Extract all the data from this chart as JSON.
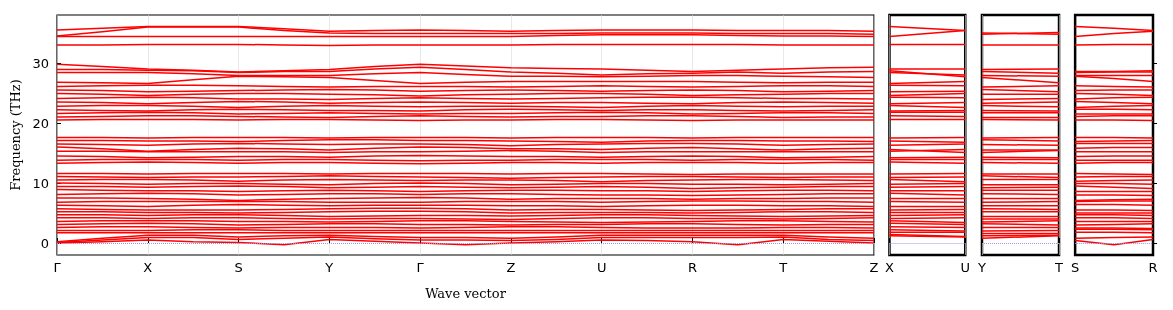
{
  "chart_data": [
    {
      "type": "line",
      "ylabel": "Frequency (THz)",
      "xlabel": "Wave vector",
      "ylim": [
        -2,
        38
      ],
      "yticks": [
        0,
        10,
        20,
        30
      ],
      "grid": "x",
      "marker": "none",
      "line_style": "solid",
      "categories": [
        "Γ",
        null,
        "X",
        null,
        "S",
        null,
        "Y",
        null,
        "Γ",
        null,
        "Z",
        null,
        "U",
        null,
        "R",
        null,
        "T",
        null,
        "Z"
      ],
      "ref_lines": [
        {
          "axis": "y",
          "value": 0,
          "label": null,
          "color": "#9a9ae0",
          "line_style": "dotted"
        }
      ],
      "series": [
        {
          "color": "#ff0000",
          "values": [
            35.5,
            35.8,
            36.1,
            36.1,
            36.1,
            35.7,
            35.3,
            35.4,
            35.5,
            35.4,
            35.3,
            35.4,
            35.5,
            35.5,
            35.5,
            35.4,
            35.4,
            35.4,
            35.3
          ]
        },
        {
          "color": "#ff0000",
          "values": [
            34.5,
            35.2,
            36.0,
            36.0,
            36.0,
            35.4,
            35.0,
            34.9,
            34.9,
            34.9,
            34.9,
            34.9,
            35.0,
            35.0,
            35.0,
            34.9,
            34.9,
            34.9,
            34.8
          ]
        },
        {
          "color": "#ff0000",
          "values": [
            34.4,
            34.4,
            34.4,
            34.4,
            34.4,
            34.4,
            34.4,
            34.4,
            34.4,
            34.4,
            34.4,
            34.6,
            34.7,
            34.7,
            34.7,
            34.6,
            34.5,
            34.5,
            34.4
          ]
        },
        {
          "color": "#ff0000",
          "values": [
            33.0,
            33.0,
            33.1,
            33.1,
            33.1,
            33.0,
            32.9,
            33.0,
            33.0,
            33.0,
            33.0,
            33.1,
            33.1,
            33.1,
            33.1,
            33.1,
            33.0,
            33.0,
            33.0
          ]
        },
        {
          "color": "#ff0000",
          "values": [
            29.8,
            29.4,
            29.0,
            28.8,
            28.5,
            28.7,
            28.9,
            29.4,
            29.8,
            29.5,
            29.2,
            29.1,
            29.0,
            28.8,
            28.6,
            28.8,
            29.0,
            29.2,
            29.3
          ]
        },
        {
          "color": "#ff0000",
          "values": [
            28.9,
            28.9,
            28.8,
            28.7,
            28.4,
            28.6,
            28.6,
            29.0,
            29.3,
            28.9,
            28.5,
            28.3,
            28.0,
            28.2,
            28.3,
            28.5,
            28.3,
            28.5,
            28.6
          ]
        },
        {
          "color": "#ff0000",
          "values": [
            28.4,
            28.4,
            28.4,
            28.2,
            27.9,
            27.9,
            27.9,
            28.2,
            28.4,
            28.1,
            27.8,
            27.8,
            27.7,
            27.8,
            27.9,
            27.9,
            27.8,
            27.7,
            27.6
          ]
        },
        {
          "color": "#ff0000",
          "values": [
            26.8,
            26.7,
            26.6,
            27.2,
            27.8,
            27.7,
            27.6,
            27.1,
            26.6,
            26.8,
            26.9,
            26.9,
            26.9,
            26.9,
            26.9,
            26.8,
            26.7,
            26.8,
            26.8
          ]
        },
        {
          "color": "#ff0000",
          "values": [
            26.1,
            26.2,
            26.3,
            26.3,
            26.2,
            26.1,
            26.0,
            26.1,
            26.1,
            26.1,
            26.0,
            26.1,
            26.2,
            26.1,
            26.0,
            26.1,
            26.2,
            26.2,
            26.1
          ]
        },
        {
          "color": "#ff0000",
          "values": [
            25.5,
            25.4,
            25.2,
            25.3,
            25.4,
            25.5,
            25.6,
            25.5,
            25.3,
            25.4,
            25.5,
            25.4,
            25.3,
            25.4,
            25.5,
            25.4,
            25.2,
            25.3,
            25.4
          ]
        },
        {
          "color": "#ff0000",
          "values": [
            24.9,
            24.8,
            24.6,
            24.8,
            24.9,
            24.9,
            24.8,
            24.7,
            24.5,
            24.7,
            24.8,
            24.9,
            24.9,
            24.8,
            24.6,
            24.7,
            24.8,
            24.9,
            24.9
          ]
        },
        {
          "color": "#ff0000",
          "values": [
            24.1,
            24.2,
            24.3,
            24.2,
            24.0,
            24.0,
            23.9,
            24.1,
            24.2,
            24.1,
            24.0,
            24.1,
            24.2,
            24.3,
            24.3,
            24.2,
            24.1,
            24.1,
            24.0
          ]
        },
        {
          "color": "#ff0000",
          "values": [
            23.5,
            23.4,
            23.2,
            23.4,
            23.6,
            23.5,
            23.3,
            23.4,
            23.5,
            23.4,
            23.3,
            23.4,
            23.4,
            23.3,
            23.2,
            23.4,
            23.5,
            23.4,
            23.3
          ]
        },
        {
          "color": "#ff0000",
          "values": [
            22.8,
            22.9,
            22.9,
            22.8,
            22.6,
            22.8,
            22.9,
            22.8,
            22.7,
            22.8,
            22.8,
            22.7,
            22.6,
            22.8,
            22.9,
            22.8,
            22.7,
            22.8,
            22.8
          ]
        },
        {
          "color": "#ff0000",
          "values": [
            22.2,
            22.1,
            22.0,
            22.2,
            22.3,
            22.2,
            22.1,
            22.1,
            22.0,
            22.2,
            22.3,
            22.2,
            22.1,
            22.2,
            22.2,
            22.1,
            22.0,
            22.1,
            22.2
          ]
        },
        {
          "color": "#ff0000",
          "values": [
            21.6,
            21.7,
            21.8,
            21.7,
            21.5,
            21.6,
            21.7,
            21.6,
            21.5,
            21.6,
            21.6,
            21.7,
            21.8,
            21.7,
            21.5,
            21.6,
            21.7,
            21.7,
            21.6
          ]
        },
        {
          "color": "#ff0000",
          "values": [
            21.0,
            21.1,
            21.2,
            21.2,
            21.1,
            21.0,
            20.9,
            21.1,
            21.2,
            21.1,
            21.0,
            21.1,
            21.1,
            21.2,
            21.2,
            21.1,
            20.9,
            21.0,
            21.0
          ]
        },
        {
          "color": "#ff0000",
          "values": [
            20.5,
            20.6,
            20.6,
            20.6,
            20.5,
            20.6,
            20.6,
            20.5,
            20.4,
            20.5,
            20.5,
            20.6,
            20.6,
            20.5,
            20.4,
            20.5,
            20.5,
            20.5,
            20.5
          ]
        },
        {
          "color": "#ff0000",
          "values": [
            17.6,
            17.6,
            17.5,
            17.6,
            17.6,
            17.6,
            17.5,
            17.6,
            17.6,
            17.6,
            17.5,
            17.6,
            17.6,
            17.6,
            17.5,
            17.6,
            17.6,
            17.6,
            17.6
          ]
        },
        {
          "color": "#ff0000",
          "values": [
            17.1,
            17.1,
            17.0,
            17.0,
            16.9,
            17.1,
            17.2,
            17.2,
            17.1,
            17.1,
            17.0,
            16.9,
            16.8,
            17.0,
            17.1,
            17.1,
            17.0,
            17.0,
            16.9
          ]
        },
        {
          "color": "#ff0000",
          "values": [
            16.5,
            16.4,
            16.3,
            16.5,
            16.6,
            16.5,
            16.4,
            16.5,
            16.5,
            16.4,
            16.2,
            16.4,
            16.5,
            16.6,
            16.6,
            16.5,
            16.3,
            16.4,
            16.5
          ]
        },
        {
          "color": "#ff0000",
          "values": [
            16.0,
            15.7,
            15.3,
            15.6,
            15.8,
            15.7,
            15.5,
            15.8,
            16.0,
            15.9,
            15.7,
            15.7,
            15.6,
            15.8,
            15.9,
            15.7,
            15.5,
            15.7,
            15.8
          ]
        },
        {
          "color": "#ff0000",
          "values": [
            15.3,
            15.3,
            15.2,
            15.2,
            15.2,
            15.2,
            15.1,
            15.2,
            15.2,
            15.3,
            15.4,
            15.3,
            15.1,
            15.2,
            15.2,
            15.2,
            15.2,
            15.2,
            15.2
          ]
        },
        {
          "color": "#ff0000",
          "values": [
            14.5,
            14.4,
            14.2,
            14.3,
            14.4,
            14.4,
            14.3,
            14.5,
            14.6,
            14.5,
            14.4,
            14.4,
            14.3,
            14.4,
            14.5,
            14.4,
            14.2,
            14.3,
            14.4
          ]
        },
        {
          "color": "#ff0000",
          "values": [
            13.8,
            13.9,
            13.9,
            13.9,
            13.8,
            13.9,
            13.9,
            13.8,
            13.7,
            13.8,
            13.8,
            13.9,
            13.9,
            13.9,
            13.8,
            13.9,
            13.9,
            13.9,
            13.8
          ]
        },
        {
          "color": "#ff0000",
          "values": [
            13.3,
            13.4,
            13.5,
            13.4,
            13.3,
            13.4,
            13.4,
            13.3,
            13.2,
            13.3,
            13.4,
            13.4,
            13.3,
            13.4,
            13.4,
            13.4,
            13.3,
            13.4,
            13.4
          ]
        },
        {
          "color": "#ff0000",
          "values": [
            11.6,
            11.6,
            11.5,
            11.6,
            11.6,
            11.6,
            11.5,
            11.6,
            11.6,
            11.6,
            11.5,
            11.6,
            11.6,
            11.5,
            11.4,
            11.5,
            11.5,
            11.5,
            11.5
          ]
        },
        {
          "color": "#ff0000",
          "values": [
            11.1,
            11.0,
            10.9,
            11.0,
            11.0,
            11.1,
            11.2,
            11.1,
            11.0,
            10.9,
            10.8,
            10.9,
            11.0,
            11.1,
            11.1,
            11.0,
            10.9,
            11.0,
            11.0
          ]
        },
        {
          "color": "#ff0000",
          "values": [
            10.5,
            10.6,
            10.6,
            10.5,
            10.3,
            10.5,
            10.6,
            10.5,
            10.4,
            10.5,
            10.5,
            10.4,
            10.2,
            10.4,
            10.5,
            10.6,
            10.6,
            10.5,
            10.4
          ]
        },
        {
          "color": "#ff0000",
          "values": [
            10.0,
            9.9,
            9.8,
            9.9,
            9.9,
            9.8,
            9.7,
            9.9,
            10.0,
            9.9,
            9.7,
            9.8,
            9.9,
            9.9,
            9.8,
            9.8,
            9.7,
            9.8,
            9.9
          ]
        },
        {
          "color": "#ff0000",
          "values": [
            9.4,
            9.4,
            9.3,
            9.4,
            9.5,
            9.4,
            9.2,
            9.3,
            9.4,
            9.3,
            9.2,
            9.3,
            9.4,
            9.3,
            9.1,
            9.2,
            9.3,
            9.4,
            9.4
          ]
        },
        {
          "color": "#ff0000",
          "values": [
            8.9,
            8.8,
            8.7,
            8.7,
            8.6,
            8.7,
            8.8,
            8.7,
            8.6,
            8.7,
            8.8,
            8.8,
            8.7,
            8.7,
            8.6,
            8.7,
            8.8,
            8.8,
            8.7
          ]
        },
        {
          "color": "#ff0000",
          "values": [
            8.1,
            8.2,
            8.3,
            8.2,
            8.0,
            8.1,
            8.2,
            8.2,
            8.1,
            8.2,
            8.2,
            8.1,
            8.0,
            8.0,
            7.9,
            8.0,
            8.1,
            8.2,
            8.2
          ]
        },
        {
          "color": "#ff0000",
          "values": [
            7.5,
            7.5,
            7.4,
            7.3,
            7.1,
            7.3,
            7.4,
            7.5,
            7.6,
            7.5,
            7.3,
            7.4,
            7.4,
            7.4,
            7.3,
            7.4,
            7.4,
            7.5,
            7.5
          ]
        },
        {
          "color": "#ff0000",
          "values": [
            6.8,
            6.9,
            6.9,
            6.9,
            6.9,
            6.9,
            6.8,
            6.8,
            6.8,
            6.9,
            6.9,
            6.9,
            6.8,
            6.9,
            7.0,
            7.0,
            6.9,
            6.9,
            6.8
          ]
        },
        {
          "color": "#ff0000",
          "values": [
            6.3,
            6.2,
            6.1,
            6.3,
            6.4,
            6.3,
            6.2,
            6.3,
            6.3,
            6.3,
            6.2,
            6.2,
            6.1,
            6.2,
            6.3,
            6.3,
            6.2,
            6.2,
            6.1
          ]
        },
        {
          "color": "#ff0000",
          "values": [
            5.7,
            5.6,
            5.5,
            5.5,
            5.5,
            5.6,
            5.7,
            5.8,
            5.8,
            5.7,
            5.5,
            5.6,
            5.6,
            5.5,
            5.4,
            5.5,
            5.6,
            5.7,
            5.7
          ]
        },
        {
          "color": "#ff0000",
          "values": [
            5.2,
            5.2,
            5.1,
            5.1,
            5.0,
            5.1,
            5.2,
            5.3,
            5.3,
            5.2,
            5.0,
            5.1,
            5.1,
            5.1,
            5.0,
            5.1,
            5.2,
            5.2,
            5.1
          ]
        },
        {
          "color": "#ff0000",
          "values": [
            4.7,
            4.7,
            4.6,
            4.7,
            4.7,
            4.6,
            4.4,
            4.5,
            4.6,
            4.6,
            4.5,
            4.6,
            4.7,
            4.7,
            4.6,
            4.5,
            4.4,
            4.5,
            4.6
          ]
        },
        {
          "color": "#ff0000",
          "values": [
            4.2,
            4.2,
            4.1,
            4.2,
            4.2,
            4.1,
            4.0,
            4.1,
            4.1,
            4.0,
            3.9,
            4.1,
            4.2,
            4.2,
            4.1,
            4.1,
            4.0,
            4.1,
            4.2
          ]
        },
        {
          "color": "#ff0000",
          "values": [
            3.6,
            3.7,
            3.7,
            3.7,
            3.6,
            3.6,
            3.5,
            3.6,
            3.7,
            3.7,
            3.6,
            3.5,
            3.4,
            3.5,
            3.6,
            3.7,
            3.7,
            3.6,
            3.5
          ]
        },
        {
          "color": "#ff0000",
          "values": [
            3.1,
            3.2,
            3.3,
            3.2,
            3.0,
            3.1,
            3.2,
            3.2,
            3.1,
            3.1,
            3.0,
            3.1,
            3.1,
            3.2,
            3.2,
            3.1,
            3.0,
            3.1,
            3.1
          ]
        },
        {
          "color": "#ff0000",
          "values": [
            2.6,
            2.7,
            2.7,
            2.6,
            2.5,
            2.6,
            2.6,
            2.6,
            2.5,
            2.6,
            2.7,
            2.7,
            2.6,
            2.5,
            2.5,
            2.5,
            2.6,
            2.6,
            2.5
          ]
        },
        {
          "color": "#ff0000",
          "values": [
            2.1,
            2.1,
            2.1,
            2.2,
            2.2,
            2.1,
            2.1,
            2.1,
            2.1,
            2.1,
            2.1,
            2.1,
            2.1,
            2.1,
            2.1,
            2.1,
            2.1,
            2.1,
            2.1
          ]
        },
        {
          "color": "#ff0000",
          "values": [
            1.7,
            1.7,
            1.7,
            1.7,
            1.7,
            1.7,
            1.7,
            1.7,
            1.7,
            1.7,
            1.7,
            1.7,
            1.7,
            1.7,
            1.7,
            1.7,
            1.7,
            1.7,
            1.7
          ]
        },
        {
          "color": "#ff0000",
          "values": [
            0.2,
            0.8,
            1.3,
            1.3,
            1.0,
            1.2,
            1.3,
            1.1,
            0.9,
            0.9,
            0.8,
            1.0,
            1.3,
            1.3,
            1.3,
            1.3,
            1.3,
            1.0,
            0.8
          ]
        },
        {
          "color": "#ff0000",
          "values": [
            0.1,
            0.5,
            0.9,
            0.9,
            0.6,
            0.8,
            1.0,
            0.7,
            0.5,
            0.5,
            0.4,
            0.6,
            0.9,
            0.9,
            0.9,
            0.9,
            1.0,
            0.6,
            0.4
          ]
        },
        {
          "color": "#ff0000",
          "values": [
            0,
            0.2,
            0.5,
            0.2,
            0.1,
            -0.3,
            0.6,
            0.3,
            0,
            -0.3,
            0,
            0.2,
            0.5,
            0.4,
            0.2,
            -0.3,
            0.6,
            0.3,
            0
          ]
        }
      ]
    },
    {
      "type": "line",
      "ylim": [
        -2,
        38
      ],
      "tick_labels": "x",
      "grid": "x",
      "marker": "none",
      "line_style": "solid",
      "categories": [
        "X",
        "U"
      ],
      "ref_lines": [
        {
          "axis": "y",
          "value": 0,
          "label": null,
          "color": "#9a9ae0",
          "line_style": "dotted"
        }
      ],
      "series": [
        {
          "color": "#ff0000",
          "values": [
            36.1,
            35.4
          ]
        },
        {
          "color": "#ff0000",
          "values": [
            34.4,
            35.4
          ]
        },
        {
          "color": "#ff0000",
          "values": [
            33.1,
            33.1
          ]
        },
        {
          "color": "#ff0000",
          "values": [
            29.0,
            29.0
          ]
        },
        {
          "color": "#ff0000",
          "values": [
            28.7,
            27.7
          ]
        },
        {
          "color": "#ff0000",
          "values": [
            28.4,
            28.0
          ]
        },
        {
          "color": "#ff0000",
          "values": [
            26.6,
            26.9
          ]
        },
        {
          "color": "#ff0000",
          "values": [
            26.3,
            26.2
          ]
        },
        {
          "color": "#ff0000",
          "values": [
            25.2,
            25.3
          ]
        },
        {
          "color": "#ff0000",
          "values": [
            24.6,
            24.9
          ]
        },
        {
          "color": "#ff0000",
          "values": [
            24.3,
            24.2
          ]
        },
        {
          "color": "#ff0000",
          "values": [
            23.2,
            23.4
          ]
        },
        {
          "color": "#ff0000",
          "values": [
            22.9,
            22.6
          ]
        },
        {
          "color": "#ff0000",
          "values": [
            22.0,
            22.1
          ]
        },
        {
          "color": "#ff0000",
          "values": [
            21.8,
            21.8
          ]
        },
        {
          "color": "#ff0000",
          "values": [
            21.2,
            21.1
          ]
        },
        {
          "color": "#ff0000",
          "values": [
            20.6,
            20.6
          ]
        },
        {
          "color": "#ff0000",
          "values": [
            17.5,
            17.6
          ]
        },
        {
          "color": "#ff0000",
          "values": [
            17.0,
            16.8
          ]
        },
        {
          "color": "#ff0000",
          "values": [
            16.3,
            16.5
          ]
        },
        {
          "color": "#ff0000",
          "values": [
            15.3,
            15.6
          ]
        },
        {
          "color": "#ff0000",
          "values": [
            15.6,
            15.1
          ]
        },
        {
          "color": "#ff0000",
          "values": [
            14.2,
            14.3
          ]
        },
        {
          "color": "#ff0000",
          "values": [
            13.9,
            13.9
          ]
        },
        {
          "color": "#ff0000",
          "values": [
            13.5,
            13.3
          ]
        },
        {
          "color": "#ff0000",
          "values": [
            11.5,
            11.6
          ]
        },
        {
          "color": "#ff0000",
          "values": [
            10.9,
            11.0
          ]
        },
        {
          "color": "#ff0000",
          "values": [
            10.6,
            10.2
          ]
        },
        {
          "color": "#ff0000",
          "values": [
            9.8,
            9.9
          ]
        },
        {
          "color": "#ff0000",
          "values": [
            9.3,
            9.4
          ]
        },
        {
          "color": "#ff0000",
          "values": [
            8.7,
            8.7
          ]
        },
        {
          "color": "#ff0000",
          "values": [
            8.3,
            8.0
          ]
        },
        {
          "color": "#ff0000",
          "values": [
            7.4,
            7.4
          ]
        },
        {
          "color": "#ff0000",
          "values": [
            6.9,
            6.8
          ]
        },
        {
          "color": "#ff0000",
          "values": [
            6.1,
            6.1
          ]
        },
        {
          "color": "#ff0000",
          "values": [
            5.5,
            5.6
          ]
        },
        {
          "color": "#ff0000",
          "values": [
            5.1,
            5.1
          ]
        },
        {
          "color": "#ff0000",
          "values": [
            4.6,
            4.7
          ]
        },
        {
          "color": "#ff0000",
          "values": [
            4.1,
            4.2
          ]
        },
        {
          "color": "#ff0000",
          "values": [
            3.7,
            3.4
          ]
        },
        {
          "color": "#ff0000",
          "values": [
            3.3,
            3.1
          ]
        },
        {
          "color": "#ff0000",
          "values": [
            2.7,
            2.6
          ]
        },
        {
          "color": "#ff0000",
          "values": [
            2.2,
            2.0
          ]
        },
        {
          "color": "#ff0000",
          "values": [
            1.8,
            1.8
          ]
        },
        {
          "color": "#ff0000",
          "values": [
            1.2,
            1.0
          ]
        },
        {
          "color": "#ff0000",
          "values": [
            1.4,
            1.1
          ]
        }
      ]
    },
    {
      "type": "line",
      "ylim": [
        -2,
        38
      ],
      "tick_labels": "x",
      "grid": "x",
      "marker": "none",
      "line_style": "solid",
      "categories": [
        "Y",
        "T"
      ],
      "ref_lines": [
        {
          "axis": "y",
          "value": 0,
          "label": null,
          "color": "#9a9ae0",
          "line_style": "dotted"
        }
      ],
      "series": [
        {
          "color": "#ff0000",
          "values": [
            35.0,
            34.8
          ]
        },
        {
          "color": "#ff0000",
          "values": [
            34.8,
            35.1
          ]
        },
        {
          "color": "#ff0000",
          "values": [
            33.0,
            33.0
          ]
        },
        {
          "color": "#ff0000",
          "values": [
            28.9,
            29.0
          ]
        },
        {
          "color": "#ff0000",
          "values": [
            28.6,
            28.3
          ]
        },
        {
          "color": "#ff0000",
          "values": [
            27.9,
            27.8
          ]
        },
        {
          "color": "#ff0000",
          "values": [
            27.6,
            26.7
          ]
        },
        {
          "color": "#ff0000",
          "values": [
            26.0,
            26.2
          ]
        },
        {
          "color": "#ff0000",
          "values": [
            25.6,
            25.2
          ]
        },
        {
          "color": "#ff0000",
          "values": [
            24.8,
            24.8
          ]
        },
        {
          "color": "#ff0000",
          "values": [
            23.9,
            24.1
          ]
        },
        {
          "color": "#ff0000",
          "values": [
            23.3,
            23.5
          ]
        },
        {
          "color": "#ff0000",
          "values": [
            22.9,
            22.7
          ]
        },
        {
          "color": "#ff0000",
          "values": [
            22.1,
            22.0
          ]
        },
        {
          "color": "#ff0000",
          "values": [
            21.7,
            21.7
          ]
        },
        {
          "color": "#ff0000",
          "values": [
            20.9,
            20.9
          ]
        },
        {
          "color": "#ff0000",
          "values": [
            20.6,
            20.5
          ]
        },
        {
          "color": "#ff0000",
          "values": [
            17.5,
            17.6
          ]
        },
        {
          "color": "#ff0000",
          "values": [
            17.2,
            17.0
          ]
        },
        {
          "color": "#ff0000",
          "values": [
            16.4,
            16.3
          ]
        },
        {
          "color": "#ff0000",
          "values": [
            15.5,
            15.5
          ]
        },
        {
          "color": "#ff0000",
          "values": [
            15.1,
            15.4
          ]
        },
        {
          "color": "#ff0000",
          "values": [
            14.3,
            14.2
          ]
        },
        {
          "color": "#ff0000",
          "values": [
            13.9,
            13.9
          ]
        },
        {
          "color": "#ff0000",
          "values": [
            13.4,
            13.3
          ]
        },
        {
          "color": "#ff0000",
          "values": [
            11.5,
            11.5
          ]
        },
        {
          "color": "#ff0000",
          "values": [
            11.2,
            10.9
          ]
        },
        {
          "color": "#ff0000",
          "values": [
            10.6,
            10.6
          ]
        },
        {
          "color": "#ff0000",
          "values": [
            9.7,
            9.7
          ]
        },
        {
          "color": "#ff0000",
          "values": [
            9.2,
            9.3
          ]
        },
        {
          "color": "#ff0000",
          "values": [
            8.8,
            8.8
          ]
        },
        {
          "color": "#ff0000",
          "values": [
            8.2,
            8.1
          ]
        },
        {
          "color": "#ff0000",
          "values": [
            7.4,
            7.4
          ]
        },
        {
          "color": "#ff0000",
          "values": [
            6.8,
            6.9
          ]
        },
        {
          "color": "#ff0000",
          "values": [
            6.2,
            6.2
          ]
        },
        {
          "color": "#ff0000",
          "values": [
            5.7,
            5.6
          ]
        },
        {
          "color": "#ff0000",
          "values": [
            5.2,
            5.2
          ]
        },
        {
          "color": "#ff0000",
          "values": [
            4.4,
            4.4
          ]
        },
        {
          "color": "#ff0000",
          "values": [
            4.0,
            4.0
          ]
        },
        {
          "color": "#ff0000",
          "values": [
            3.5,
            3.7
          ]
        },
        {
          "color": "#ff0000",
          "values": [
            3.2,
            3.0
          ]
        },
        {
          "color": "#ff0000",
          "values": [
            2.6,
            2.6
          ]
        },
        {
          "color": "#ff0000",
          "values": [
            2.0,
            2.1
          ]
        },
        {
          "color": "#ff0000",
          "values": [
            1.6,
            1.6
          ]
        },
        {
          "color": "#ff0000",
          "values": [
            0.8,
            1.2
          ]
        },
        {
          "color": "#ff0000",
          "values": [
            1.2,
            1.3
          ]
        }
      ]
    },
    {
      "type": "line",
      "ylim": [
        -2,
        38
      ],
      "yticks": [
        0,
        10,
        20,
        30
      ],
      "tick_labels": "x",
      "marker": "none",
      "line_style": "solid",
      "categories": [
        "S",
        null,
        "R"
      ],
      "ref_lines": [
        {
          "axis": "y",
          "value": 0,
          "label": null,
          "color": "#9a9ae0",
          "line_style": "dotted"
        }
      ],
      "series": [
        {
          "color": "#ff0000",
          "values": [
            36.1,
            35.8,
            35.4
          ]
        },
        {
          "color": "#ff0000",
          "values": [
            34.4,
            34.9,
            35.3
          ]
        },
        {
          "color": "#ff0000",
          "values": [
            33.0,
            33.1,
            33.1
          ]
        },
        {
          "color": "#ff0000",
          "values": [
            28.6,
            28.6,
            28.7
          ]
        },
        {
          "color": "#ff0000",
          "values": [
            28.4,
            28.5,
            28.5
          ]
        },
        {
          "color": "#ff0000",
          "values": [
            27.9,
            27.9,
            27.9
          ]
        },
        {
          "color": "#ff0000",
          "values": [
            27.8,
            27.4,
            26.9
          ]
        },
        {
          "color": "#ff0000",
          "values": [
            26.2,
            26.1,
            26.0
          ]
        },
        {
          "color": "#ff0000",
          "values": [
            25.4,
            25.5,
            25.5
          ]
        },
        {
          "color": "#ff0000",
          "values": [
            24.9,
            24.8,
            24.6
          ]
        },
        {
          "color": "#ff0000",
          "values": [
            24.0,
            24.2,
            24.3
          ]
        },
        {
          "color": "#ff0000",
          "values": [
            23.6,
            23.4,
            23.2
          ]
        },
        {
          "color": "#ff0000",
          "values": [
            22.6,
            22.8,
            22.9
          ]
        },
        {
          "color": "#ff0000",
          "values": [
            22.3,
            22.3,
            22.2
          ]
        },
        {
          "color": "#ff0000",
          "values": [
            21.5,
            21.5,
            21.5
          ]
        },
        {
          "color": "#ff0000",
          "values": [
            21.1,
            21.2,
            21.2
          ]
        },
        {
          "color": "#ff0000",
          "values": [
            20.5,
            20.5,
            20.4
          ]
        },
        {
          "color": "#ff0000",
          "values": [
            17.6,
            17.6,
            17.5
          ]
        },
        {
          "color": "#ff0000",
          "values": [
            16.9,
            17.0,
            17.1
          ]
        },
        {
          "color": "#ff0000",
          "values": [
            16.6,
            16.6,
            16.6
          ]
        },
        {
          "color": "#ff0000",
          "values": [
            15.8,
            15.9,
            15.9
          ]
        },
        {
          "color": "#ff0000",
          "values": [
            15.2,
            15.2,
            15.2
          ]
        },
        {
          "color": "#ff0000",
          "values": [
            14.4,
            14.5,
            14.5
          ]
        },
        {
          "color": "#ff0000",
          "values": [
            13.8,
            13.8,
            13.8
          ]
        },
        {
          "color": "#ff0000",
          "values": [
            13.3,
            13.4,
            13.4
          ]
        },
        {
          "color": "#ff0000",
          "values": [
            11.6,
            11.5,
            11.4
          ]
        },
        {
          "color": "#ff0000",
          "values": [
            11.0,
            11.1,
            11.1
          ]
        },
        {
          "color": "#ff0000",
          "values": [
            10.3,
            10.4,
            10.5
          ]
        },
        {
          "color": "#ff0000",
          "values": [
            9.9,
            9.9,
            9.8
          ]
        },
        {
          "color": "#ff0000",
          "values": [
            9.5,
            9.3,
            9.1
          ]
        },
        {
          "color": "#ff0000",
          "values": [
            8.6,
            8.6,
            8.6
          ]
        },
        {
          "color": "#ff0000",
          "values": [
            8.0,
            8.0,
            7.9
          ]
        },
        {
          "color": "#ff0000",
          "values": [
            7.1,
            7.2,
            7.3
          ]
        },
        {
          "color": "#ff0000",
          "values": [
            6.9,
            7.0,
            7.0
          ]
        },
        {
          "color": "#ff0000",
          "values": [
            6.4,
            6.4,
            6.3
          ]
        },
        {
          "color": "#ff0000",
          "values": [
            5.5,
            5.5,
            5.4
          ]
        },
        {
          "color": "#ff0000",
          "values": [
            5.0,
            5.0,
            5.0
          ]
        },
        {
          "color": "#ff0000",
          "values": [
            4.7,
            4.7,
            4.6
          ]
        },
        {
          "color": "#ff0000",
          "values": [
            4.2,
            4.2,
            4.1
          ]
        },
        {
          "color": "#ff0000",
          "values": [
            3.6,
            3.6,
            3.6
          ]
        },
        {
          "color": "#ff0000",
          "values": [
            3.0,
            3.1,
            3.2
          ]
        },
        {
          "color": "#ff0000",
          "values": [
            2.5,
            2.5,
            2.4
          ]
        },
        {
          "color": "#ff0000",
          "values": [
            2.3,
            2.3,
            2.2
          ]
        },
        {
          "color": "#ff0000",
          "values": [
            1.8,
            1.8,
            1.7
          ]
        },
        {
          "color": "#ff0000",
          "values": [
            0.8,
            0.9,
            1.0
          ]
        },
        {
          "color": "#ff0000",
          "values": [
            0.4,
            -0.3,
            0.6
          ]
        }
      ]
    }
  ]
}
